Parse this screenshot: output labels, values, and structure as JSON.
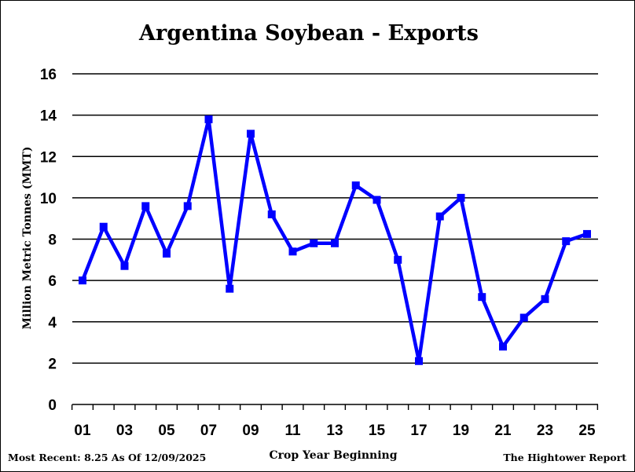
{
  "chart_data": {
    "type": "line",
    "title": "Argentina Soybean - Exports",
    "ylabel": "Million Metric Tonnes (MMT)",
    "xlabel": "Crop Year Beginning",
    "ylim": [
      0,
      16
    ],
    "yticks": [
      "0",
      "2",
      "4",
      "6",
      "8",
      "10",
      "12",
      "14",
      "16"
    ],
    "xtick_labels": [
      "01",
      "03",
      "05",
      "07",
      "09",
      "11",
      "13",
      "15",
      "17",
      "19",
      "21",
      "23",
      "25"
    ],
    "grid": true,
    "x": [
      "01",
      "02",
      "03",
      "04",
      "05",
      "06",
      "07",
      "08",
      "09",
      "10",
      "11",
      "12",
      "13",
      "14",
      "15",
      "16",
      "17",
      "18",
      "19",
      "20",
      "21",
      "22",
      "23",
      "24",
      "25"
    ],
    "series": [
      {
        "color": "#0000ff",
        "values": [
          6.0,
          8.6,
          6.7,
          9.6,
          7.3,
          9.6,
          13.8,
          5.6,
          13.1,
          9.2,
          7.4,
          7.8,
          7.8,
          10.6,
          9.9,
          7.0,
          2.1,
          9.1,
          10.0,
          5.2,
          2.8,
          4.2,
          5.1,
          7.9,
          8.25
        ]
      }
    ]
  },
  "footer": {
    "left": "Most Recent: 8.25 As Of 12/09/2025",
    "right": "The Hightower Report"
  }
}
